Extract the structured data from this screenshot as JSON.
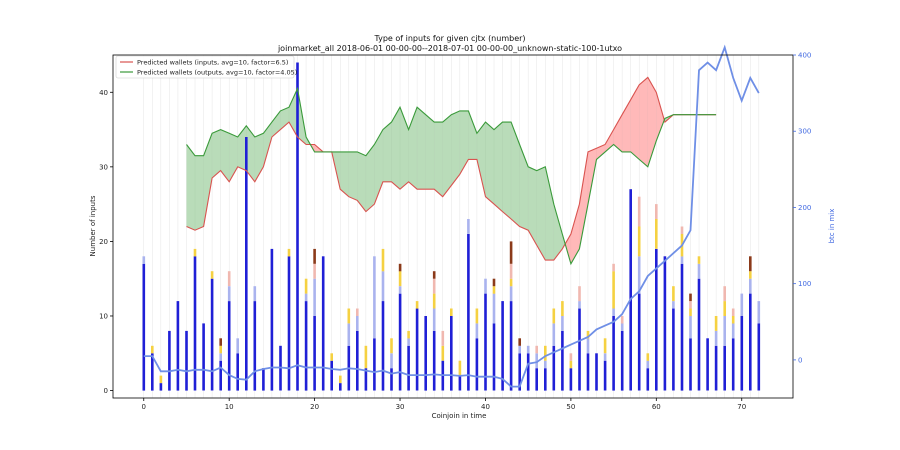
{
  "chart_data": {
    "type": "bar",
    "title": "Type of inputs for given cjtx (number)",
    "subtitle": "joinmarket_all 2018-06-01 00-00-00--2018-07-01 00-00-00_unknown-static-100-1utxo",
    "xlabel": "Coinjoin in time",
    "ylabel": "Number of inputs",
    "y2label": "btc in mix",
    "xlim": [
      -3.6,
      76.0
    ],
    "ylim": [
      -1,
      45
    ],
    "y2lim": [
      -50,
      400
    ],
    "xticks": [
      0,
      10,
      20,
      30,
      40,
      50,
      60,
      70
    ],
    "yticks": [
      0,
      10,
      20,
      30,
      40
    ],
    "y2ticks": [
      0,
      100,
      200,
      300,
      400
    ],
    "grid": "vertical lines at each coinjoin",
    "legend_position": "top-left",
    "colors": {
      "base_bar": "#1f1fd6",
      "stack_colors": [
        "#aab3ee",
        "#f5d142",
        "#f0b8b0",
        "#8b3a1a"
      ],
      "wallet_line_inputs": "#d9534f",
      "wallet_fill_inputs": "#ff8080",
      "wallet_line_outputs": "#3a9a3a",
      "wallet_fill_outputs": "#7fc07f",
      "btc_line": "#6f8fe6",
      "right_axis": "#4169e1"
    },
    "legend": [
      {
        "label": "Predicted wallets (inputs, avg=10, factor=6.5)",
        "color": "#d9534f"
      },
      {
        "label": "Predicted wallets (outputs, avg=10, factor=4.05)",
        "color": "#3a9a3a"
      }
    ],
    "bars": {
      "x": [
        0,
        1,
        2,
        3,
        4,
        5,
        6,
        7,
        8,
        9,
        10,
        11,
        12,
        13,
        14,
        15,
        16,
        17,
        18,
        19,
        20,
        21,
        22,
        23,
        24,
        25,
        26,
        27,
        28,
        29,
        30,
        31,
        32,
        33,
        34,
        35,
        36,
        37,
        38,
        39,
        40,
        41,
        42,
        43,
        44,
        45,
        46,
        47,
        48,
        49,
        50,
        51,
        52,
        53,
        54,
        55,
        56,
        57,
        58,
        59,
        60,
        61,
        62,
        63,
        64,
        65,
        66,
        67,
        68,
        69,
        70,
        71,
        72
      ],
      "stacks": [
        [
          17,
          1,
          0,
          0,
          0
        ],
        [
          5,
          0,
          1,
          0,
          0
        ],
        [
          1,
          0,
          1,
          0,
          0
        ],
        [
          8,
          0,
          0,
          0,
          0
        ],
        [
          12,
          0,
          0,
          0,
          0
        ],
        [
          8,
          0,
          0,
          0,
          0
        ],
        [
          18,
          0,
          1,
          0,
          0
        ],
        [
          9,
          0,
          0,
          0,
          0
        ],
        [
          15,
          0,
          1,
          0,
          0
        ],
        [
          4,
          1,
          1,
          0,
          1
        ],
        [
          12,
          2,
          0,
          2,
          0
        ],
        [
          5,
          2,
          0,
          0,
          0
        ],
        [
          34,
          0,
          0,
          0,
          0
        ],
        [
          12,
          2,
          0,
          0,
          0
        ],
        [
          3,
          0,
          0,
          0,
          0
        ],
        [
          19,
          0,
          0,
          0,
          0
        ],
        [
          6,
          0,
          0,
          0,
          0
        ],
        [
          18,
          0,
          1,
          0,
          0
        ],
        [
          44,
          0,
          0,
          0,
          0
        ],
        [
          12,
          1,
          2,
          0,
          0
        ],
        [
          10,
          5,
          0,
          2,
          2
        ],
        [
          18,
          0,
          0,
          0,
          0
        ],
        [
          4,
          0,
          1,
          0,
          0
        ],
        [
          1,
          0,
          1,
          0,
          0
        ],
        [
          6,
          3,
          2,
          0,
          0
        ],
        [
          8,
          2,
          0,
          1,
          0
        ],
        [
          3,
          0,
          3,
          0,
          0
        ],
        [
          7,
          11,
          0,
          0,
          0
        ],
        [
          12,
          4,
          3,
          0,
          0
        ],
        [
          3,
          2,
          2,
          0,
          0
        ],
        [
          13,
          1,
          2,
          0,
          1
        ],
        [
          6,
          1,
          1,
          0,
          0
        ],
        [
          11,
          0,
          1,
          0,
          0
        ],
        [
          10,
          0,
          0,
          0,
          0
        ],
        [
          8,
          3,
          2,
          2,
          1
        ],
        [
          4,
          0,
          2,
          2,
          0
        ],
        [
          10,
          0,
          1,
          0,
          0
        ],
        [
          2,
          0,
          2,
          0,
          0
        ],
        [
          21,
          2,
          0,
          0,
          0
        ],
        [
          7,
          2,
          2,
          0,
          0
        ],
        [
          13,
          2,
          0,
          0,
          0
        ],
        [
          9,
          4,
          1,
          0,
          1
        ],
        [
          12,
          0,
          0,
          0,
          0
        ],
        [
          12,
          2,
          1,
          2,
          3
        ],
        [
          5,
          1,
          0,
          0,
          1
        ],
        [
          5,
          1,
          0,
          0,
          0
        ],
        [
          3,
          2,
          0,
          1,
          0
        ],
        [
          3,
          1,
          2,
          0,
          0
        ],
        [
          6,
          3,
          2,
          0,
          0
        ],
        [
          8,
          2,
          2,
          0,
          0
        ],
        [
          3,
          0,
          1,
          1,
          0
        ],
        [
          11,
          1,
          0,
          2,
          0
        ],
        [
          5,
          2,
          1,
          0,
          0
        ],
        [
          5,
          0,
          0,
          0,
          0
        ],
        [
          4,
          1,
          2,
          0,
          0
        ],
        [
          10,
          1,
          5,
          1,
          0
        ],
        [
          8,
          1,
          0,
          1,
          0
        ],
        [
          27,
          0,
          0,
          0,
          0
        ],
        [
          13,
          5,
          4,
          4,
          0
        ],
        [
          3,
          1,
          1,
          0,
          0
        ],
        [
          19,
          0,
          4,
          2,
          0
        ],
        [
          18,
          0,
          0,
          0,
          0
        ],
        [
          11,
          1,
          2,
          0,
          0
        ],
        [
          17,
          1,
          3,
          1,
          0
        ],
        [
          7,
          3,
          1,
          1,
          1
        ],
        [
          15,
          2,
          1,
          0,
          0
        ],
        [
          7,
          0,
          0,
          0,
          0
        ],
        [
          6,
          2,
          2,
          0,
          0
        ],
        [
          6,
          4,
          2,
          2,
          0
        ],
        [
          7,
          2,
          1,
          1,
          0
        ],
        [
          10,
          3,
          0,
          0,
          0
        ],
        [
          13,
          2,
          1,
          0,
          2
        ],
        [
          9,
          3,
          0,
          0,
          0
        ]
      ]
    },
    "wallet_bands": {
      "x": [
        5,
        6,
        7,
        8,
        9,
        10,
        11,
        12,
        13,
        14,
        15,
        16,
        17,
        18,
        19,
        20,
        21,
        22,
        23,
        24,
        25,
        26,
        27,
        28,
        29,
        30,
        31,
        32,
        33,
        34,
        35,
        36,
        37,
        38,
        39,
        40,
        41,
        42,
        43,
        44,
        45,
        46,
        47,
        48,
        49,
        50,
        51,
        52,
        53,
        54,
        55,
        56,
        57,
        58,
        59,
        60,
        61,
        62,
        63,
        64,
        65,
        66,
        67
      ],
      "inputs": [
        22,
        21.5,
        22,
        28.5,
        29.5,
        28,
        30,
        29.5,
        28,
        30,
        34,
        35,
        36,
        34,
        33,
        33,
        32,
        32,
        27,
        26,
        25.5,
        24,
        25,
        28,
        28,
        27,
        28,
        27,
        27,
        27,
        26,
        27.5,
        29,
        31,
        31,
        26,
        25,
        24,
        23,
        22,
        21.5,
        19.5,
        17.5,
        17.5,
        19,
        21,
        25,
        32,
        32.5,
        33,
        35,
        37,
        39,
        41,
        42,
        40,
        36,
        37,
        37,
        37,
        37,
        37,
        37
      ],
      "outputs": [
        33,
        31.5,
        31.5,
        34.5,
        35,
        34.5,
        34,
        35.5,
        34,
        34.5,
        36,
        37.5,
        38,
        40.5,
        34,
        32,
        32,
        32,
        32,
        32,
        32,
        31.5,
        33,
        35,
        36,
        38,
        35,
        38,
        37,
        36,
        36,
        37,
        37.5,
        37.5,
        34.5,
        36,
        35,
        36,
        36,
        33,
        30,
        29.5,
        30,
        25,
        21,
        17,
        19,
        25,
        31,
        32,
        33,
        32,
        32,
        31,
        30,
        33.5,
        36.5,
        37,
        37,
        37,
        37,
        37,
        37
      ]
    },
    "btc_in_mix": {
      "x": [
        0,
        1,
        2,
        3,
        4,
        5,
        6,
        7,
        8,
        9,
        10,
        11,
        12,
        13,
        14,
        15,
        16,
        17,
        18,
        19,
        20,
        21,
        22,
        23,
        24,
        25,
        26,
        27,
        28,
        29,
        30,
        31,
        32,
        33,
        34,
        35,
        36,
        37,
        38,
        39,
        40,
        41,
        42,
        43,
        44,
        45,
        46,
        47,
        48,
        49,
        50,
        51,
        52,
        53,
        54,
        55,
        56,
        57,
        58,
        59,
        60,
        61,
        62,
        63,
        64,
        65,
        66,
        67,
        68,
        69,
        70,
        71,
        72
      ],
      "y": [
        5,
        5,
        -15,
        -15,
        -13,
        -15,
        -13,
        -13,
        -15,
        -10,
        -20,
        -25,
        -26,
        -15,
        -12,
        -10,
        -10,
        -11,
        -7,
        -10,
        -10,
        -10,
        -12,
        -13,
        -11,
        -12,
        -14,
        -16,
        -14,
        -18,
        -16,
        -20,
        -20,
        -20,
        -19,
        -20,
        -20,
        -21,
        -20,
        -22,
        -22,
        -22,
        -25,
        -35,
        -35,
        -5,
        -3,
        5,
        10,
        15,
        20,
        25,
        30,
        40,
        45,
        50,
        60,
        80,
        90,
        110,
        120,
        130,
        140,
        150,
        170,
        380,
        390,
        380,
        410,
        370,
        340,
        370,
        350
      ]
    }
  }
}
